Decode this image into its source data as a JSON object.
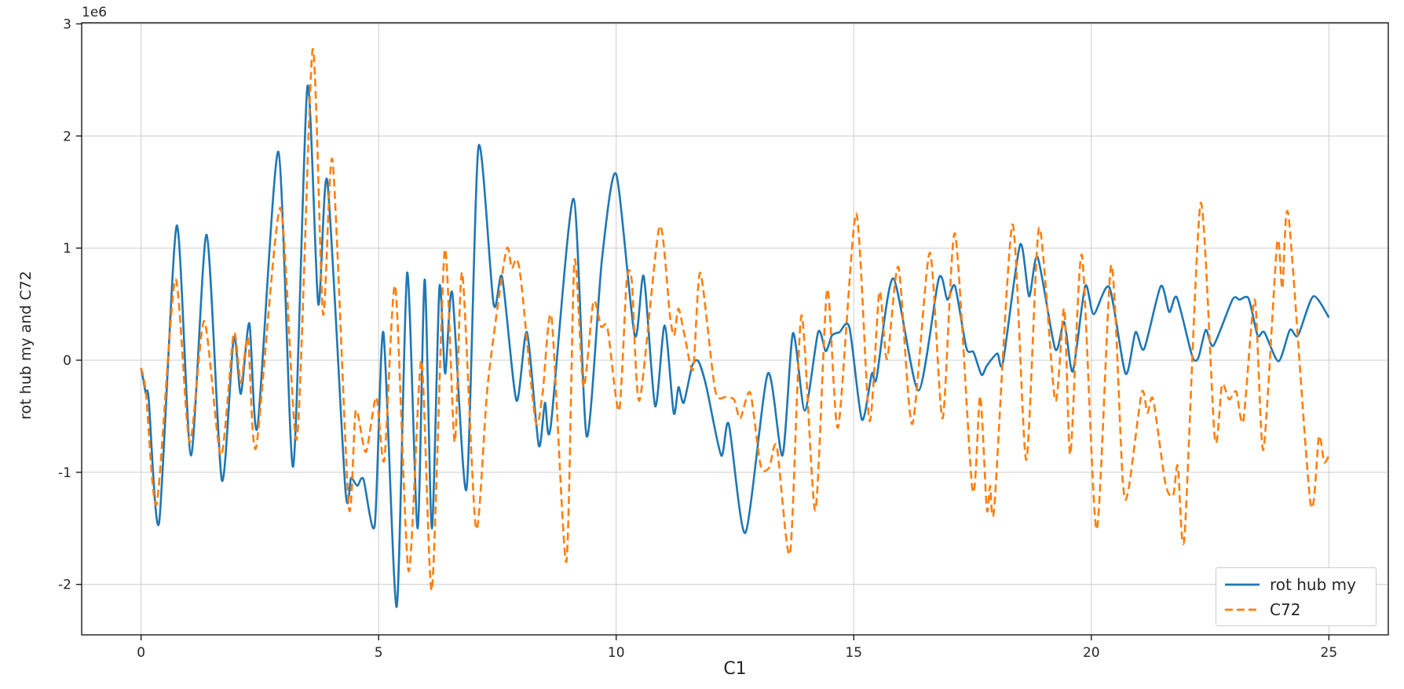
{
  "figure": {
    "background": "#ffffff",
    "spine_color": "#1a1a1a"
  },
  "labels": {
    "xlabel": "C1",
    "ylabel": "rot hub my and C72",
    "y_offset_text": "1e6"
  },
  "legend": {
    "entries": [
      {
        "label": "rot hub my",
        "color": "#1f77b4",
        "style": "solid"
      },
      {
        "label": "C72",
        "color": "#ff7f0e",
        "style": "dashed"
      }
    ],
    "position": "lower right",
    "border_color": "#cccccc"
  },
  "chart_data": {
    "type": "line",
    "title": "",
    "xlabel": "C1",
    "ylabel": "rot hub my and C72",
    "y_offset_text": "1e6",
    "y_unit_multiplier": 1000000,
    "xlim": [
      -1.25,
      26.25
    ],
    "ylim": [
      -2.45,
      3.01
    ],
    "x_ticks": [
      0,
      5,
      10,
      15,
      20,
      25
    ],
    "y_ticks": [
      -2,
      -1,
      0,
      1,
      2,
      3
    ],
    "grid": true,
    "grid_color": "#cccccc",
    "legend_position": "lower right",
    "series": [
      {
        "name": "rot hub my",
        "color": "#1f77b4",
        "style": "solid",
        "points": [
          [
            0,
            -0.07
          ],
          [
            0.05,
            -0.18
          ],
          [
            0.1,
            -0.3
          ],
          [
            0.16,
            -0.34
          ],
          [
            0.38,
            -1.45
          ],
          [
            0.75,
            1.2
          ],
          [
            1.05,
            -0.85
          ],
          [
            1.38,
            1.12
          ],
          [
            1.7,
            -1.07
          ],
          [
            1.95,
            0.2
          ],
          [
            2.1,
            -0.3
          ],
          [
            2.28,
            0.33
          ],
          [
            2.45,
            -0.6
          ],
          [
            2.89,
            1.86
          ],
          [
            3.2,
            -0.95
          ],
          [
            3.5,
            2.44
          ],
          [
            3.73,
            0.5
          ],
          [
            3.92,
            1.6
          ],
          [
            4.3,
            -1.15
          ],
          [
            4.42,
            -1.05
          ],
          [
            4.55,
            -1.12
          ],
          [
            4.68,
            -1.06
          ],
          [
            4.92,
            -1.47
          ],
          [
            5.1,
            0.25
          ],
          [
            5.38,
            -2.2
          ],
          [
            5.6,
            0.78
          ],
          [
            5.82,
            -1.5
          ],
          [
            5.97,
            0.72
          ],
          [
            6.12,
            -1.5
          ],
          [
            6.28,
            0.65
          ],
          [
            6.4,
            -0.12
          ],
          [
            6.55,
            0.6
          ],
          [
            6.85,
            -1.15
          ],
          [
            7.1,
            1.9
          ],
          [
            7.42,
            0.5
          ],
          [
            7.6,
            0.74
          ],
          [
            7.9,
            -0.36
          ],
          [
            8.12,
            0.25
          ],
          [
            8.37,
            -0.76
          ],
          [
            8.5,
            -0.38
          ],
          [
            8.62,
            -0.6
          ],
          [
            9.1,
            1.44
          ],
          [
            9.38,
            -0.68
          ],
          [
            9.7,
            0.9
          ],
          [
            10.0,
            1.66
          ],
          [
            10.39,
            0.22
          ],
          [
            10.58,
            0.75
          ],
          [
            10.82,
            -0.41
          ],
          [
            11.02,
            0.31
          ],
          [
            11.21,
            -0.47
          ],
          [
            11.31,
            -0.24
          ],
          [
            11.42,
            -0.38
          ],
          [
            11.6,
            -0.05
          ],
          [
            11.73,
            -0.01
          ],
          [
            11.9,
            -0.24
          ],
          [
            12.21,
            -0.85
          ],
          [
            12.37,
            -0.57
          ],
          [
            12.72,
            -1.54
          ],
          [
            13.19,
            -0.12
          ],
          [
            13.5,
            -0.85
          ],
          [
            13.72,
            0.24
          ],
          [
            13.97,
            -0.45
          ],
          [
            14.25,
            0.25
          ],
          [
            14.41,
            0.08
          ],
          [
            14.54,
            0.22
          ],
          [
            14.7,
            0.25
          ],
          [
            14.91,
            0.29
          ],
          [
            15.17,
            -0.53
          ],
          [
            15.38,
            -0.12
          ],
          [
            15.48,
            -0.16
          ],
          [
            15.83,
            0.73
          ],
          [
            16.36,
            -0.27
          ],
          [
            16.79,
            0.73
          ],
          [
            16.97,
            0.54
          ],
          [
            17.13,
            0.66
          ],
          [
            17.37,
            0.11
          ],
          [
            17.52,
            0.07
          ],
          [
            17.69,
            -0.13
          ],
          [
            17.8,
            -0.05
          ],
          [
            18.02,
            0.06
          ],
          [
            18.14,
            -0.02
          ],
          [
            18.5,
            1.03
          ],
          [
            18.69,
            0.57
          ],
          [
            18.87,
            0.92
          ],
          [
            19.24,
            0.1
          ],
          [
            19.43,
            0.34
          ],
          [
            19.61,
            -0.1
          ],
          [
            19.87,
            0.66
          ],
          [
            20.05,
            0.41
          ],
          [
            20.38,
            0.65
          ],
          [
            20.72,
            -0.12
          ],
          [
            20.93,
            0.25
          ],
          [
            21.11,
            0.1
          ],
          [
            21.46,
            0.66
          ],
          [
            21.64,
            0.43
          ],
          [
            21.8,
            0.56
          ],
          [
            22.12,
            0.04
          ],
          [
            22.25,
            0.02
          ],
          [
            22.41,
            0.27
          ],
          [
            22.57,
            0.13
          ],
          [
            22.97,
            0.54
          ],
          [
            23.12,
            0.54
          ],
          [
            23.31,
            0.55
          ],
          [
            23.5,
            0.22
          ],
          [
            23.64,
            0.25
          ],
          [
            23.94,
            -0.01
          ],
          [
            24.18,
            0.27
          ],
          [
            24.35,
            0.22
          ],
          [
            24.67,
            0.57
          ],
          [
            25.0,
            0.38
          ]
        ]
      },
      {
        "name": "C72",
        "color": "#ff7f0e",
        "style": "dashed",
        "points": [
          [
            0,
            -0.07
          ],
          [
            0.1,
            -0.28
          ],
          [
            0.33,
            -1.28
          ],
          [
            0.72,
            0.72
          ],
          [
            1.02,
            -0.73
          ],
          [
            1.33,
            0.35
          ],
          [
            1.68,
            -0.85
          ],
          [
            1.95,
            0.24
          ],
          [
            2.1,
            -0.2
          ],
          [
            2.25,
            0.2
          ],
          [
            2.42,
            -0.78
          ],
          [
            2.93,
            1.36
          ],
          [
            3.28,
            -0.7
          ],
          [
            3.61,
            2.77
          ],
          [
            3.83,
            0.41
          ],
          [
            4.03,
            1.78
          ],
          [
            4.37,
            -1.3
          ],
          [
            4.52,
            -0.45
          ],
          [
            4.73,
            -0.82
          ],
          [
            4.95,
            -0.33
          ],
          [
            5.12,
            -0.89
          ],
          [
            5.35,
            0.66
          ],
          [
            5.63,
            -1.88
          ],
          [
            5.9,
            0.0
          ],
          [
            6.12,
            -2.05
          ],
          [
            6.39,
            0.98
          ],
          [
            6.6,
            -0.73
          ],
          [
            6.76,
            0.78
          ],
          [
            7.05,
            -1.5
          ],
          [
            7.3,
            -0.2
          ],
          [
            7.68,
            0.97
          ],
          [
            7.8,
            0.82
          ],
          [
            7.9,
            0.9
          ],
          [
            8.0,
            0.7
          ],
          [
            8.3,
            -0.54
          ],
          [
            8.45,
            -0.3
          ],
          [
            8.64,
            0.38
          ],
          [
            8.95,
            -1.8
          ],
          [
            9.12,
            0.88
          ],
          [
            9.31,
            -0.24
          ],
          [
            9.52,
            0.52
          ],
          [
            9.68,
            0.3
          ],
          [
            9.82,
            0.28
          ],
          [
            10.06,
            -0.45
          ],
          [
            10.22,
            0.7
          ],
          [
            10.33,
            0.7
          ],
          [
            10.49,
            -0.36
          ],
          [
            10.91,
            1.19
          ],
          [
            11.13,
            0.4
          ],
          [
            11.22,
            0.22
          ],
          [
            11.31,
            0.46
          ],
          [
            11.44,
            0.22
          ],
          [
            11.62,
            -0.08
          ],
          [
            11.77,
            0.78
          ],
          [
            12.08,
            -0.26
          ],
          [
            12.3,
            -0.33
          ],
          [
            12.48,
            -0.35
          ],
          [
            12.61,
            -0.52
          ],
          [
            12.82,
            -0.29
          ],
          [
            13.04,
            -0.94
          ],
          [
            13.22,
            -0.96
          ],
          [
            13.38,
            -0.77
          ],
          [
            13.66,
            -1.72
          ],
          [
            13.9,
            0.4
          ],
          [
            14.19,
            -1.34
          ],
          [
            14.44,
            0.63
          ],
          [
            14.67,
            -0.6
          ],
          [
            15.05,
            1.31
          ],
          [
            15.33,
            -0.54
          ],
          [
            15.54,
            0.61
          ],
          [
            15.7,
            0.01
          ],
          [
            15.94,
            0.83
          ],
          [
            16.23,
            -0.57
          ],
          [
            16.6,
            0.96
          ],
          [
            16.87,
            -0.52
          ],
          [
            17.13,
            1.13
          ],
          [
            17.5,
            -1.16
          ],
          [
            17.66,
            -0.32
          ],
          [
            17.8,
            -1.33
          ],
          [
            17.87,
            -1.12
          ],
          [
            17.96,
            -1.3
          ],
          [
            18.34,
            1.21
          ],
          [
            18.63,
            -0.89
          ],
          [
            18.9,
            1.18
          ],
          [
            19.24,
            -0.36
          ],
          [
            19.43,
            0.46
          ],
          [
            19.56,
            -0.84
          ],
          [
            19.8,
            0.94
          ],
          [
            20.11,
            -1.51
          ],
          [
            20.42,
            0.85
          ],
          [
            20.66,
            -1.07
          ],
          [
            20.78,
            -1.16
          ],
          [
            21.06,
            -0.29
          ],
          [
            21.18,
            -0.47
          ],
          [
            21.3,
            -0.35
          ],
          [
            21.56,
            -1.1
          ],
          [
            21.72,
            -1.21
          ],
          [
            21.82,
            -0.94
          ],
          [
            21.96,
            -1.58
          ],
          [
            22.3,
            1.4
          ],
          [
            22.6,
            -0.7
          ],
          [
            22.75,
            -0.22
          ],
          [
            22.9,
            -0.35
          ],
          [
            23.05,
            -0.28
          ],
          [
            23.2,
            -0.54
          ],
          [
            23.44,
            0.54
          ],
          [
            23.62,
            -0.8
          ],
          [
            23.91,
            1.04
          ],
          [
            24.02,
            0.64
          ],
          [
            24.15,
            1.29
          ],
          [
            24.61,
            -1.27
          ],
          [
            24.79,
            -0.68
          ],
          [
            24.9,
            -0.91
          ],
          [
            25.0,
            -0.85
          ]
        ]
      }
    ]
  }
}
